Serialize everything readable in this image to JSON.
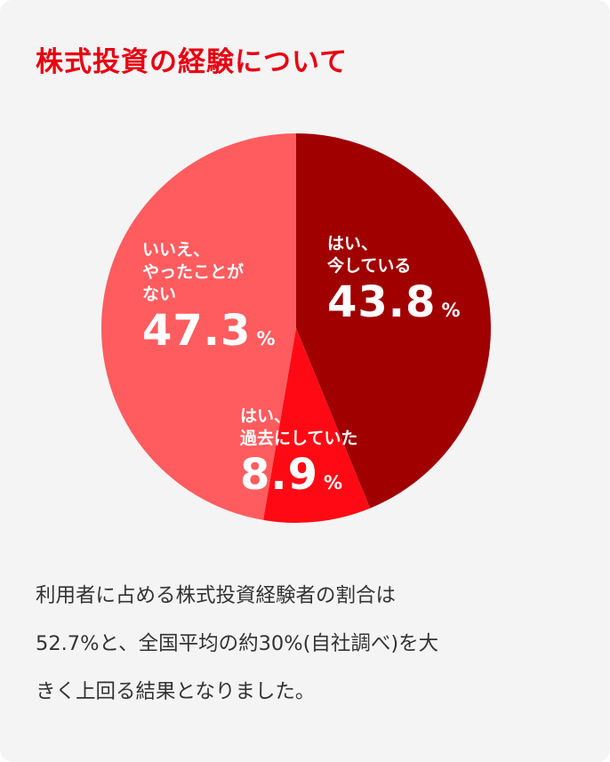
{
  "title": "株式投資の経験について",
  "colors": {
    "accent": "#e60012",
    "background": "#f4f4f4",
    "slice_now": "#a00000",
    "slice_past": "#ff0a14",
    "slice_never": "#ff5c5f"
  },
  "chart_data": {
    "type": "pie",
    "slices": [
      {
        "label_lines": [
          "はい、",
          "今している"
        ],
        "value": 43.8,
        "value_text": "43.8",
        "unit": "%",
        "color": "#a00000"
      },
      {
        "label_lines": [
          "はい、",
          "過去にしていた"
        ],
        "value": 8.9,
        "value_text": "8.9",
        "unit": "%",
        "color": "#ff0a14"
      },
      {
        "label_lines": [
          "いいえ、",
          "やったことが",
          "ない"
        ],
        "value": 47.3,
        "value_text": "47.3",
        "unit": "%",
        "color": "#ff5c5f"
      }
    ]
  },
  "description_lines": [
    "利用者に占める株式投資経験者の割合は",
    "52.7%と、全国平均の約30%(自社調べ)を大",
    "きく上回る結果となりました。"
  ]
}
